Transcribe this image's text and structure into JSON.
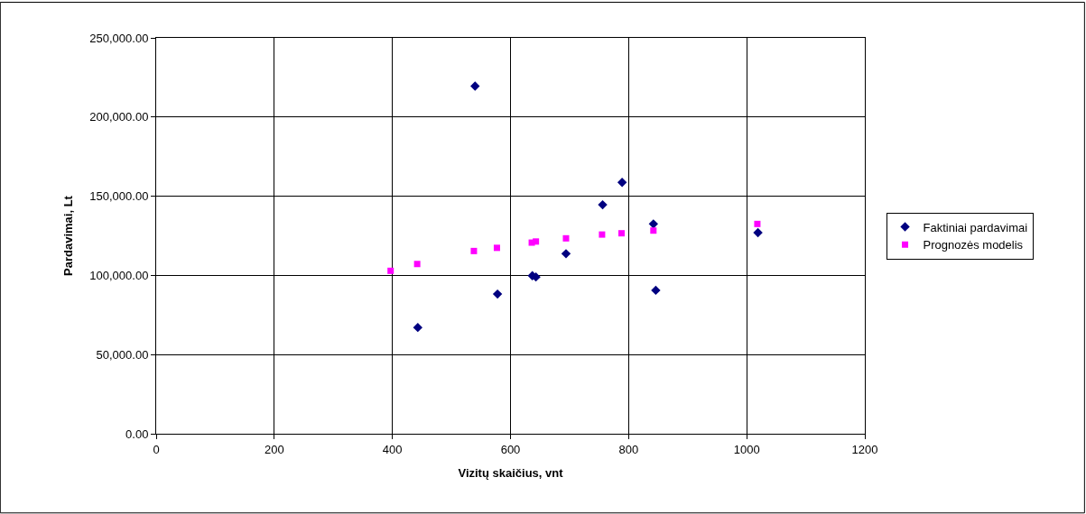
{
  "chart_data": {
    "type": "scatter",
    "xlabel": "Vizitų skaičius, vnt",
    "ylabel": "Pardavimai, Lt",
    "series": [
      {
        "name": "Faktiniai pardavimai",
        "color": "#000080",
        "marker": "diamond",
        "x": [
          443,
          540,
          578,
          637,
          643,
          694,
          756,
          789,
          842,
          846,
          1019
        ],
        "values": [
          67100,
          219500,
          88200,
          99800,
          99000,
          113700,
          144600,
          158700,
          132500,
          90600,
          127000
        ]
      },
      {
        "name": "Prognozės modelis",
        "color": "#ff00ff",
        "marker": "square",
        "x": [
          397,
          442,
          538,
          577,
          636,
          643,
          694,
          755,
          788,
          842,
          1018
        ],
        "values": [
          102900,
          107200,
          115400,
          117400,
          120700,
          121400,
          123400,
          125800,
          126600,
          128300,
          132500
        ]
      }
    ],
    "xlim": [
      0,
      1200
    ],
    "xticks": [
      0,
      200,
      400,
      600,
      800,
      1000,
      1200
    ],
    "ylim": [
      0,
      250000
    ],
    "yticks": [
      {
        "value": 0,
        "label": "0.00"
      },
      {
        "value": 50000,
        "label": "50,000.00"
      },
      {
        "value": 100000,
        "label": "100,000.00"
      },
      {
        "value": 150000,
        "label": "150,000.00"
      },
      {
        "value": 200000,
        "label": "200,000.00"
      },
      {
        "value": 250000,
        "label": "250,000.00"
      }
    ],
    "grid": true,
    "legend": "right"
  }
}
